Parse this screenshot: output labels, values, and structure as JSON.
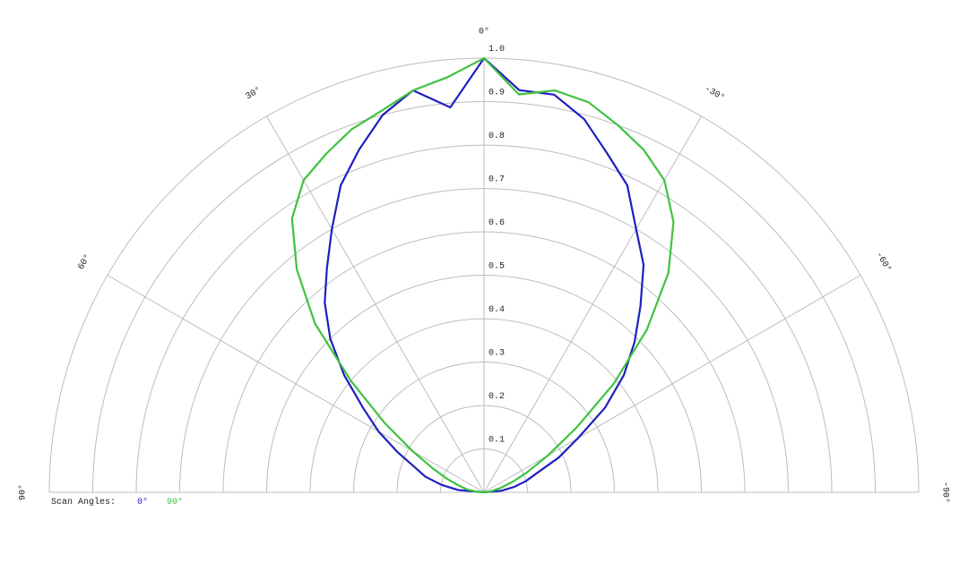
{
  "chart_data": {
    "type": "polar",
    "x": [
      90,
      85,
      80,
      75,
      70,
      65,
      60,
      55,
      50,
      45,
      40,
      35,
      30,
      25,
      20,
      15,
      10,
      5,
      0,
      -5,
      -10,
      -15,
      -20,
      -25,
      -30,
      -35,
      -40,
      -45,
      -50,
      -55,
      -60,
      -65,
      -70,
      -75,
      -80,
      -85,
      -90
    ],
    "series": [
      {
        "name": "0°",
        "color": "#1f1fbf",
        "values": [
          0,
          0.06,
          0.1,
          0.14,
          0.17,
          0.22,
          0.28,
          0.34,
          0.42,
          0.5,
          0.57,
          0.63,
          0.7,
          0.78,
          0.84,
          0.9,
          0.94,
          0.89,
          1.0,
          0.93,
          0.93,
          0.89,
          0.83,
          0.78,
          0.7,
          0.64,
          0.56,
          0.49,
          0.42,
          0.34,
          0.25,
          0.19,
          0.13,
          0.1,
          0.07,
          0.04,
          0
        ]
      },
      {
        "name": "90°",
        "color": "#3fc23f",
        "values": [
          0,
          0.02,
          0.04,
          0.06,
          0.09,
          0.13,
          0.19,
          0.28,
          0.4,
          0.55,
          0.67,
          0.77,
          0.83,
          0.86,
          0.89,
          0.91,
          0.94,
          0.96,
          1.0,
          0.92,
          0.94,
          0.93,
          0.9,
          0.87,
          0.83,
          0.76,
          0.66,
          0.53,
          0.39,
          0.26,
          0.17,
          0.11,
          0.07,
          0.04,
          0.02,
          0.01,
          0
        ]
      }
    ],
    "legend_title": "Scan Angles:",
    "xlim": [
      90,
      -90
    ],
    "xticks": [
      {
        "value": 90,
        "label": "90°"
      },
      {
        "value": 60,
        "label": "60°"
      },
      {
        "value": 30,
        "label": "30°"
      },
      {
        "value": 0,
        "label": "0°"
      },
      {
        "value": -30,
        "label": "-30°"
      },
      {
        "value": -60,
        "label": "-60°"
      },
      {
        "value": -90,
        "label": "-90°"
      }
    ],
    "ylim": [
      0,
      1
    ],
    "yticks": [
      0.1,
      0.2,
      0.3,
      0.4,
      0.5,
      0.6,
      0.7,
      0.8,
      0.9,
      {
        "value": 1,
        "label": "1.0"
      }
    ],
    "grid": true
  }
}
